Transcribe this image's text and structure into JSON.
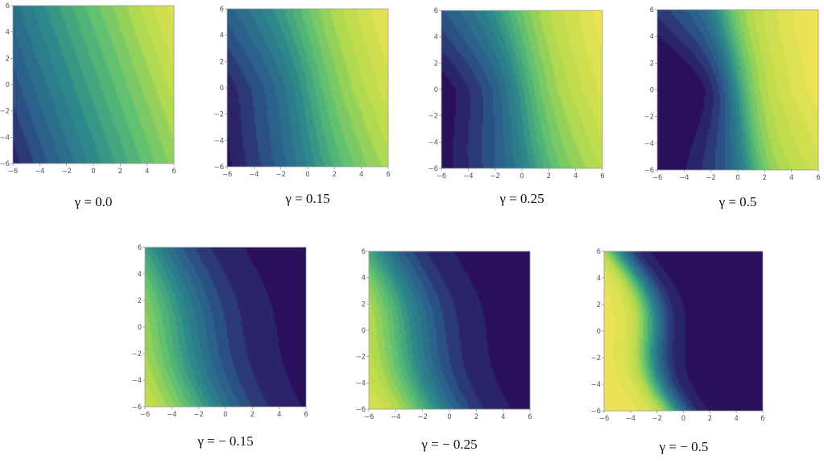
{
  "chart_data": [
    {
      "type": "heatmap",
      "caption": "γ = 0.0",
      "gamma": 0.0,
      "xlim": [
        -6,
        6
      ],
      "ylim": [
        -6,
        6
      ],
      "x_ticks": [
        "−6",
        "−4",
        "−2",
        "0",
        "2",
        "4",
        "6"
      ],
      "y_ticks": [
        "6",
        "4",
        "2",
        "0",
        "−2",
        "−4",
        "−6"
      ],
      "colormap": [
        "#2a0f5b",
        "#2b5d8c",
        "#2c8b8a",
        "#5cbf73",
        "#b8dc4c",
        "#ede356"
      ]
    },
    {
      "type": "heatmap",
      "caption": "γ = 0.15",
      "gamma": 0.15,
      "xlim": [
        -6,
        6
      ],
      "ylim": [
        -6,
        6
      ],
      "x_ticks": [
        "−6",
        "−4",
        "−2",
        "0",
        "2",
        "4",
        "6"
      ],
      "y_ticks": [
        "6",
        "4",
        "2",
        "0",
        "−2",
        "−4",
        "−6"
      ],
      "colormap": [
        "#2a0f5b",
        "#2b5d8c",
        "#2c8b8a",
        "#5cbf73",
        "#b8dc4c",
        "#ede356"
      ]
    },
    {
      "type": "heatmap",
      "caption": "γ = 0.25",
      "gamma": 0.25,
      "xlim": [
        -6,
        6
      ],
      "ylim": [
        -6,
        6
      ],
      "x_ticks": [
        "−6",
        "−4",
        "−2",
        "0",
        "2",
        "4",
        "6"
      ],
      "y_ticks": [
        "6",
        "4",
        "2",
        "0",
        "−2",
        "−4",
        "−6"
      ],
      "colormap": [
        "#2a0f5b",
        "#2b5d8c",
        "#2c8b8a",
        "#5cbf73",
        "#b8dc4c",
        "#ede356"
      ]
    },
    {
      "type": "heatmap",
      "caption": "γ = 0.5",
      "gamma": 0.5,
      "xlim": [
        -6,
        6
      ],
      "ylim": [
        -6,
        6
      ],
      "x_ticks": [
        "−6",
        "−4",
        "−2",
        "0",
        "2",
        "4",
        "6"
      ],
      "y_ticks": [
        "6",
        "4",
        "2",
        "0",
        "−2",
        "−4",
        "−6"
      ],
      "colormap": [
        "#2a0f5b",
        "#2b5d8c",
        "#2c8b8a",
        "#5cbf73",
        "#b8dc4c",
        "#ede356"
      ]
    },
    {
      "type": "heatmap",
      "caption": "γ = − 0.15",
      "gamma": -0.15,
      "xlim": [
        -6,
        6
      ],
      "ylim": [
        -6,
        6
      ],
      "x_ticks": [
        "−6",
        "−4",
        "−2",
        "0",
        "2",
        "4",
        "6"
      ],
      "y_ticks": [
        "6",
        "4",
        "2",
        "0",
        "−2",
        "−4",
        "−6"
      ],
      "colormap": [
        "#2a0f5b",
        "#2b5d8c",
        "#2c8b8a",
        "#5cbf73",
        "#b8dc4c",
        "#ede356"
      ]
    },
    {
      "type": "heatmap",
      "caption": "γ = − 0.25",
      "gamma": -0.25,
      "xlim": [
        -6,
        6
      ],
      "ylim": [
        -6,
        6
      ],
      "x_ticks": [
        "−6",
        "−4",
        "−2",
        "0",
        "2",
        "4",
        "6"
      ],
      "y_ticks": [
        "6",
        "4",
        "2",
        "0",
        "−2",
        "−4",
        "−6"
      ],
      "colormap": [
        "#2a0f5b",
        "#2b5d8c",
        "#2c8b8a",
        "#5cbf73",
        "#b8dc4c",
        "#ede356"
      ]
    },
    {
      "type": "heatmap",
      "caption": "γ = − 0.5",
      "gamma": -0.5,
      "xlim": [
        -6,
        6
      ],
      "ylim": [
        -6,
        6
      ],
      "x_ticks": [
        "−6",
        "−4",
        "−2",
        "0",
        "2",
        "4",
        "6"
      ],
      "y_ticks": [
        "6",
        "4",
        "2",
        "0",
        "−2",
        "−4",
        "−6"
      ],
      "colormap": [
        "#2a0f5b",
        "#2b5d8c",
        "#2c8b8a",
        "#5cbf73",
        "#b8dc4c",
        "#ede356"
      ]
    }
  ]
}
